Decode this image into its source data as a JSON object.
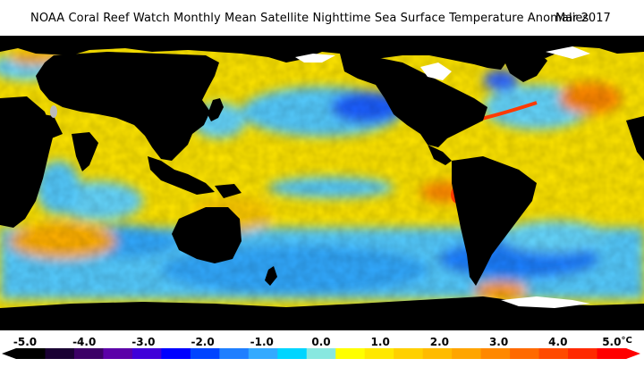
{
  "title": "NOAA Coral Reef Watch Monthly Mean Satellite Nighttime Sea Surface Temperature Anomalies",
  "date": "Mar 2017",
  "colors": {
    "land": "#000000",
    "ice": "#ffffff",
    "background": "#ffffff"
  },
  "legend": {
    "unit": "°C",
    "ticks": [
      {
        "value": -5.0,
        "label": "-5.0"
      },
      {
        "value": -4.0,
        "label": "-4.0"
      },
      {
        "value": -3.0,
        "label": "-3.0"
      },
      {
        "value": -2.0,
        "label": "-2.0"
      },
      {
        "value": -1.0,
        "label": "-1.0"
      },
      {
        "value": 0.0,
        "label": "0.0"
      },
      {
        "value": 1.0,
        "label": "1.0"
      },
      {
        "value": 2.0,
        "label": "2.0"
      },
      {
        "value": 3.0,
        "label": "3.0"
      },
      {
        "value": 4.0,
        "label": "4.0"
      },
      {
        "value": 5.0,
        "label": "5.0"
      }
    ],
    "bins": [
      "#000000",
      "#1a0033",
      "#3c0066",
      "#5c00a8",
      "#4000d9",
      "#0000ff",
      "#0044ff",
      "#1f7fff",
      "#33aaff",
      "#00d5ff",
      "#88e8e0",
      "#ffff00",
      "#ffe800",
      "#ffd000",
      "#ffbb00",
      "#ffa500",
      "#ff8800",
      "#ff6a00",
      "#ff4a00",
      "#ff2a00",
      "#ff0000"
    ]
  }
}
